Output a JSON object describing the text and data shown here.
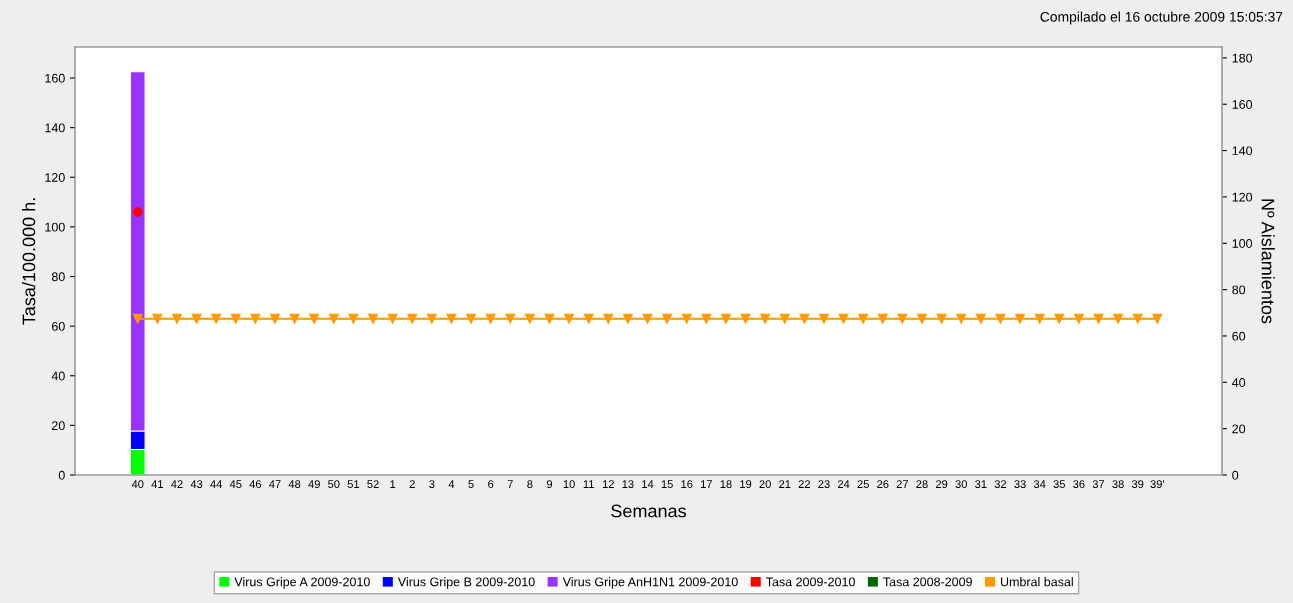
{
  "chart_data": {
    "type": "bar",
    "stacked": true,
    "xlabel": "Semanas",
    "ylabel": "Tasa/100.000 h.",
    "y2label": "Nº Aislamientos",
    "annotations": [
      "Compilado el 16 octubre 2009 15:05:37"
    ],
    "categories": [
      "40",
      "41",
      "42",
      "43",
      "44",
      "45",
      "46",
      "47",
      "48",
      "49",
      "50",
      "51",
      "52",
      "1",
      "2",
      "3",
      "4",
      "5",
      "6",
      "7",
      "8",
      "9",
      "10",
      "11",
      "12",
      "13",
      "14",
      "15",
      "16",
      "17",
      "18",
      "19",
      "20",
      "21",
      "22",
      "23",
      "24",
      "25",
      "26",
      "27",
      "28",
      "29",
      "30",
      "31",
      "32",
      "33",
      "34",
      "35",
      "36",
      "37",
      "38",
      "39",
      "39'"
    ],
    "series": [
      {
        "name": "Virus Gripe A 2009-2010",
        "color": "#00ff00",
        "axis": "y2",
        "values": [
          11,
          null,
          null,
          null,
          null,
          null,
          null,
          null,
          null,
          null,
          null,
          null,
          null,
          null,
          null,
          null,
          null,
          null,
          null,
          null,
          null,
          null,
          null,
          null,
          null,
          null,
          null,
          null,
          null,
          null,
          null,
          null,
          null,
          null,
          null,
          null,
          null,
          null,
          null,
          null,
          null,
          null,
          null,
          null,
          null,
          null,
          null,
          null,
          null,
          null,
          null,
          null,
          null
        ]
      },
      {
        "name": "Virus Gripe B 2009-2010",
        "color": "#0000ff",
        "axis": "y2",
        "values": [
          8,
          null,
          null,
          null,
          null,
          null,
          null,
          null,
          null,
          null,
          null,
          null,
          null,
          null,
          null,
          null,
          null,
          null,
          null,
          null,
          null,
          null,
          null,
          null,
          null,
          null,
          null,
          null,
          null,
          null,
          null,
          null,
          null,
          null,
          null,
          null,
          null,
          null,
          null,
          null,
          null,
          null,
          null,
          null,
          null,
          null,
          null,
          null,
          null,
          null,
          null,
          null,
          null
        ]
      },
      {
        "name": "Virus Gripe AnH1N1 2009-2010",
        "color": "#9933ff",
        "axis": "y2",
        "values": [
          155,
          null,
          null,
          null,
          null,
          null,
          null,
          null,
          null,
          null,
          null,
          null,
          null,
          null,
          null,
          null,
          null,
          null,
          null,
          null,
          null,
          null,
          null,
          null,
          null,
          null,
          null,
          null,
          null,
          null,
          null,
          null,
          null,
          null,
          null,
          null,
          null,
          null,
          null,
          null,
          null,
          null,
          null,
          null,
          null,
          null,
          null,
          null,
          null,
          null,
          null,
          null,
          null
        ]
      },
      {
        "name": "Tasa 2009-2010",
        "color": "#ff0000",
        "type": "line",
        "marker": "circle",
        "values": [
          106,
          null,
          null,
          null,
          null,
          null,
          null,
          null,
          null,
          null,
          null,
          null,
          null,
          null,
          null,
          null,
          null,
          null,
          null,
          null,
          null,
          null,
          null,
          null,
          null,
          null,
          null,
          null,
          null,
          null,
          null,
          null,
          null,
          null,
          null,
          null,
          null,
          null,
          null,
          null,
          null,
          null,
          null,
          null,
          null,
          null,
          null,
          null,
          null,
          null,
          null,
          null,
          null
        ]
      },
      {
        "name": "Tasa 2008-2009",
        "color": "#006600",
        "type": "line",
        "values": [
          null,
          null,
          null,
          null,
          null,
          null,
          null,
          null,
          null,
          null,
          null,
          null,
          null,
          null,
          null,
          null,
          null,
          null,
          null,
          null,
          null,
          null,
          null,
          null,
          null,
          null,
          null,
          null,
          null,
          null,
          null,
          null,
          null,
          null,
          null,
          null,
          null,
          null,
          null,
          null,
          null,
          null,
          null,
          null,
          null,
          null,
          null,
          null,
          null,
          null,
          null,
          null,
          null
        ]
      },
      {
        "name": "Umbral basal",
        "color": "#ff9900",
        "type": "line",
        "marker": "triangle",
        "values": [
          63,
          63,
          63,
          63,
          63,
          63,
          63,
          63,
          63,
          63,
          63,
          63,
          63,
          63,
          63,
          63,
          63,
          63,
          63,
          63,
          63,
          63,
          63,
          63,
          63,
          63,
          63,
          63,
          63,
          63,
          63,
          63,
          63,
          63,
          63,
          63,
          63,
          63,
          63,
          63,
          63,
          63,
          63,
          63,
          63,
          63,
          63,
          63,
          63,
          63,
          63,
          63,
          63
        ]
      }
    ],
    "ylim": [
      0,
      172.5
    ],
    "yticks": [
      0,
      20,
      40,
      60,
      80,
      100,
      120,
      140,
      160
    ],
    "y2lim": [
      0,
      184.7
    ],
    "y2ticks": [
      0,
      20,
      40,
      60,
      80,
      100,
      120,
      140,
      160,
      180
    ],
    "grid": false,
    "legend": "bottom"
  }
}
